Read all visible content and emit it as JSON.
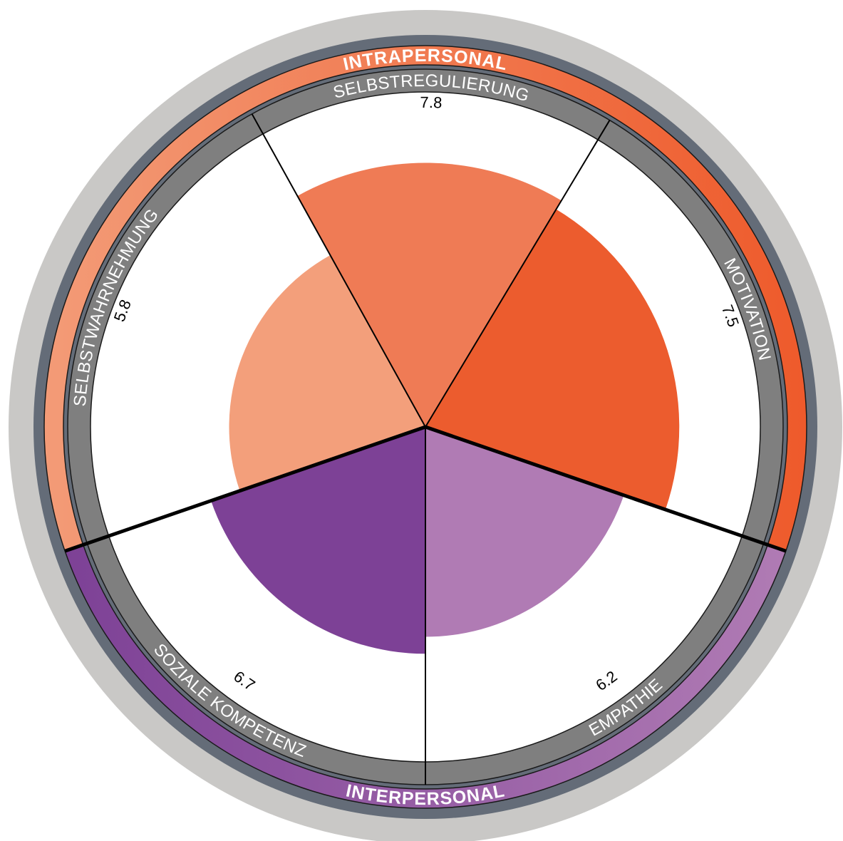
{
  "chart_data": {
    "type": "polar-area",
    "scale_max": 10,
    "groups": [
      {
        "name": "INTRAPERSONAL",
        "color": "#ef7a4f"
      },
      {
        "name": "INTERPERSONAL",
        "color": "#7d4196"
      }
    ],
    "categories": [
      {
        "label": "SELBSTREGULIERUNG",
        "value": 7.8,
        "value_text": "7.8",
        "color": "#ef7b55",
        "group": 0
      },
      {
        "label": "MOTIVATION",
        "value": 7.5,
        "value_text": "7.5",
        "color": "#ec5c2e",
        "group": 0
      },
      {
        "label": "EMPATHIE",
        "value": 6.2,
        "value_text": "6.2",
        "color": "#b07bb4",
        "group": 1
      },
      {
        "label": "SOZIALE KOMPETENZ",
        "value": 6.7,
        "value_text": "6.7",
        "color": "#7d4196",
        "group": 1
      },
      {
        "label": "SELBSTWAHRNEHMUNG",
        "value": 5.8,
        "value_text": "5.8",
        "color": "#f39f7b",
        "group": 0
      }
    ],
    "colors": {
      "outer_ring": "#c9c8c6",
      "dark_ring": "#646c78",
      "label_ring": "#7f7f7f",
      "intrapersonal_gradient": [
        "#ee5a2b",
        "#f39b77"
      ],
      "interpersonal_gradient": [
        "#7d4196",
        "#b07bb4"
      ]
    }
  }
}
